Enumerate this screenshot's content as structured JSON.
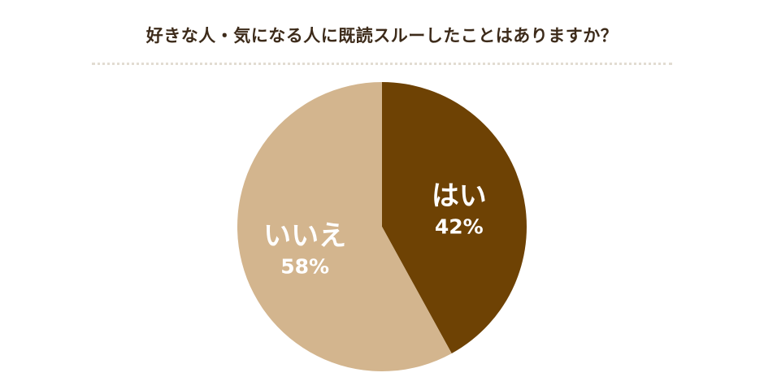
{
  "colors": {
    "title_text": "#3d2b1a",
    "divider": "#e2dcd2",
    "label_text": "#ffffff"
  },
  "chart_data": {
    "type": "pie",
    "title": "好きな人・気になる人に既読スルーしたことはありますか？",
    "legend": "none",
    "start_angle": "12 o'clock, clockwise",
    "slices": [
      {
        "label": "はい",
        "value": 42,
        "percent_label": "42%",
        "color": "#6e4204"
      },
      {
        "label": "いいえ",
        "value": 58,
        "percent_label": "58%",
        "color": "#d3b58e"
      }
    ]
  }
}
